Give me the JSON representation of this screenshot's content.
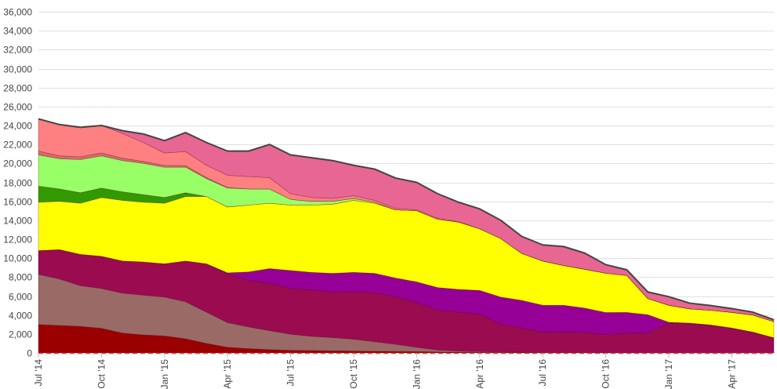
{
  "chart_data": {
    "type": "area",
    "stacked": true,
    "grid": true,
    "legend": "none",
    "title": "",
    "xlabel": "",
    "ylabel": "",
    "ylim": [
      0,
      36000
    ],
    "y_ticks": [
      0,
      2000,
      4000,
      6000,
      8000,
      10000,
      12000,
      14000,
      16000,
      18000,
      20000,
      22000,
      24000,
      26000,
      28000,
      30000,
      32000,
      34000,
      36000
    ],
    "y_tick_labels": [
      "0",
      "2,000",
      "4,000",
      "6,000",
      "8,000",
      "10,000",
      "12,000",
      "14,000",
      "16,000",
      "18,000",
      "20,000",
      "22,000",
      "24,000",
      "26,000",
      "28,000",
      "30,000",
      "32,000",
      "34,000",
      "36,000"
    ],
    "x": [
      "2014-07",
      "2014-08",
      "2014-09",
      "2014-10",
      "2014-11",
      "2014-12",
      "2015-01",
      "2015-02",
      "2015-03",
      "2015-04",
      "2015-05",
      "2015-06",
      "2015-07",
      "2015-08",
      "2015-09",
      "2015-10",
      "2015-11",
      "2015-12",
      "2016-01",
      "2016-02",
      "2016-03",
      "2016-04",
      "2016-05",
      "2016-06",
      "2016-07",
      "2016-08",
      "2016-09",
      "2016-10",
      "2016-11",
      "2016-12",
      "2017-01",
      "2017-02",
      "2017-03",
      "2017-04",
      "2017-05",
      "2017-06"
    ],
    "x_ticks": [
      {
        "index": 0,
        "label": "Jul '14"
      },
      {
        "index": 3,
        "label": "Oct '14"
      },
      {
        "index": 6,
        "label": "Jan '15"
      },
      {
        "index": 9,
        "label": "Apr '15"
      },
      {
        "index": 12,
        "label": "Jul '15"
      },
      {
        "index": 15,
        "label": "Oct '15"
      },
      {
        "index": 18,
        "label": "Jan '16"
      },
      {
        "index": 21,
        "label": "Apr '16"
      },
      {
        "index": 24,
        "label": "Jul '16"
      },
      {
        "index": 27,
        "label": "Oct '16"
      },
      {
        "index": 30,
        "label": "Jan '17"
      },
      {
        "index": 33,
        "label": "Apr '17"
      }
    ],
    "total_line_color": "#444444",
    "series": [
      {
        "color": "#9b0000",
        "values": [
          3000,
          2900,
          2800,
          2600,
          2100,
          1900,
          1800,
          1500,
          1000,
          600,
          450,
          350,
          280,
          250,
          220,
          200,
          180,
          160,
          140,
          100,
          80,
          60,
          50,
          40,
          30,
          20,
          20,
          15,
          10,
          10,
          10,
          5,
          5,
          5,
          5,
          5
        ]
      },
      {
        "color": "#9a6a66",
        "values": [
          5300,
          4900,
          4300,
          4200,
          4200,
          4200,
          4100,
          3900,
          3300,
          2600,
          2300,
          2000,
          1700,
          1500,
          1400,
          1250,
          1000,
          750,
          450,
          200,
          120,
          80,
          50,
          30,
          20,
          15,
          10,
          10,
          5,
          5,
          5,
          5,
          5,
          5,
          5,
          5
        ]
      },
      {
        "color": "#9a0b50",
        "values": [
          2500,
          3100,
          3300,
          3400,
          3400,
          3500,
          3500,
          4300,
          5100,
          5100,
          4900,
          5000,
          4800,
          4900,
          4800,
          5000,
          5200,
          4990,
          4710,
          4240,
          4100,
          3960,
          2920,
          2580,
          2140,
          2170,
          2140,
          1920,
          2080,
          2120,
          3120,
          3050,
          2860,
          2550,
          2130,
          1560
        ]
      },
      {
        "color": "#960096",
        "values": [
          0,
          0,
          0,
          0,
          0,
          0,
          0,
          0,
          0,
          150,
          900,
          1550,
          1920,
          1850,
          1980,
          2050,
          2020,
          2000,
          2200,
          2360,
          2400,
          2500,
          2870,
          2900,
          2840,
          2820,
          2560,
          2320,
          2180,
          1900,
          100,
          90,
          80,
          70,
          60,
          30
        ]
      },
      {
        "color": "#ffff00",
        "values": [
          5100,
          5100,
          5400,
          6200,
          6400,
          6300,
          6400,
          6800,
          7100,
          6950,
          7050,
          6900,
          6900,
          7100,
          7300,
          7600,
          7400,
          7200,
          7500,
          7200,
          7100,
          6500,
          6180,
          4950,
          4670,
          4200,
          4100,
          4150,
          3900,
          1700,
          1800,
          1500,
          1550,
          1650,
          1800,
          1700
        ]
      },
      {
        "color": "#339900",
        "values": [
          1700,
          1300,
          1100,
          1000,
          900,
          800,
          600,
          400,
          0,
          0,
          0,
          0,
          0,
          0,
          0,
          0,
          0,
          0,
          0,
          0,
          0,
          0,
          0,
          0,
          0,
          0,
          0,
          0,
          0,
          0,
          0,
          0,
          0,
          0,
          0,
          0
        ]
      },
      {
        "color": "#99ff66",
        "values": [
          3300,
          3200,
          3500,
          3400,
          3300,
          3300,
          3200,
          2700,
          1900,
          2000,
          1700,
          1500,
          600,
          400,
          300,
          200,
          100,
          0,
          0,
          0,
          0,
          0,
          0,
          0,
          0,
          0,
          0,
          0,
          0,
          0,
          0,
          0,
          0,
          0,
          0,
          0
        ]
      },
      {
        "color": "#d96b6b",
        "values": [
          400,
          300,
          300,
          300,
          250,
          200,
          200,
          150,
          100,
          50,
          0,
          0,
          0,
          0,
          0,
          0,
          0,
          0,
          0,
          0,
          0,
          0,
          0,
          0,
          0,
          0,
          0,
          0,
          0,
          0,
          0,
          0,
          0,
          0,
          0,
          0
        ]
      },
      {
        "color": "#ff8080",
        "values": [
          3400,
          3300,
          3100,
          2900,
          2600,
          2000,
          1300,
          1500,
          1300,
          1300,
          1300,
          1200,
          600,
          400,
          300,
          300,
          200,
          150,
          100,
          100,
          50,
          0,
          0,
          0,
          0,
          0,
          0,
          0,
          0,
          0,
          0,
          0,
          0,
          0,
          0,
          0
        ]
      },
      {
        "color": "#e86694",
        "values": [
          0,
          0,
          0,
          0,
          300,
          900,
          1300,
          2000,
          2400,
          2550,
          2700,
          3500,
          4100,
          4200,
          4000,
          3200,
          3300,
          3200,
          2900,
          2600,
          2050,
          2100,
          1930,
          1800,
          1700,
          2000,
          1700,
          900,
          600,
          700,
          900,
          600,
          500,
          400,
          300,
          200
        ]
      }
    ]
  }
}
